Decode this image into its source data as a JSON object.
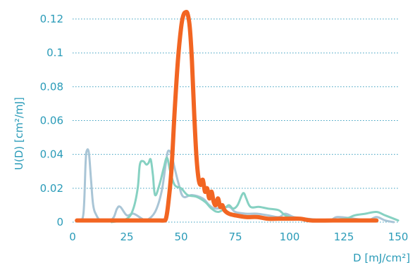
{
  "chart_data": {
    "type": "line",
    "title": "",
    "xlabel": "D [mJ/cm²]",
    "ylabel": "U(D) [cm²/mJ]",
    "xlim": [
      0,
      150
    ],
    "ylim": [
      0,
      0.125
    ],
    "x_ticks": [
      "0",
      "25",
      "50",
      "75",
      "100",
      "125",
      "150"
    ],
    "y_ticks": [
      "0",
      "0.02",
      "0.04",
      "0.06",
      "0.08",
      "0.1",
      "0.12"
    ],
    "grid": "horizontal dotted",
    "legend": "none",
    "colors": {
      "axis_text": "#2a9bb8",
      "grid": "#3a9fbf"
    },
    "series": [
      {
        "color": "#a9c5d6",
        "points": [
          [
            3,
            0.001
          ],
          [
            5,
            0.005
          ],
          [
            6,
            0.035
          ],
          [
            6.5,
            0.042
          ],
          [
            7.5,
            0.041
          ],
          [
            8.5,
            0.025
          ],
          [
            9.5,
            0.01
          ],
          [
            11,
            0.004
          ],
          [
            13,
            0.001
          ],
          [
            17,
            0.001
          ],
          [
            19,
            0.003
          ],
          [
            20.5,
            0.008
          ],
          [
            22,
            0.009
          ],
          [
            25,
            0.004
          ],
          [
            28,
            0.005
          ],
          [
            32,
            0.002
          ],
          [
            34,
            0.001
          ],
          [
            38,
            0.006
          ],
          [
            41,
            0.018
          ],
          [
            43,
            0.035
          ],
          [
            44,
            0.042
          ],
          [
            45.5,
            0.04
          ],
          [
            47,
            0.032
          ],
          [
            49,
            0.022
          ],
          [
            51,
            0.015
          ],
          [
            55,
            0.016
          ],
          [
            60,
            0.014
          ],
          [
            63,
            0.01
          ],
          [
            66,
            0.008
          ],
          [
            72,
            0.009
          ],
          [
            75,
            0.006
          ],
          [
            80,
            0.005
          ],
          [
            85,
            0.005
          ],
          [
            90,
            0.004
          ],
          [
            95,
            0.003
          ],
          [
            98,
            0.005
          ],
          [
            102,
            0.003
          ],
          [
            108,
            0.002
          ],
          [
            118,
            0.001
          ],
          [
            122,
            0.003
          ],
          [
            130,
            0.002
          ],
          [
            136,
            0.001
          ],
          [
            140,
            0.003
          ],
          [
            144,
            0.001
          ],
          [
            148,
            0.0
          ]
        ]
      },
      {
        "color": "#86d1c2",
        "points": [
          [
            18,
            0.0
          ],
          [
            25,
            0.002
          ],
          [
            28,
            0.008
          ],
          [
            30,
            0.02
          ],
          [
            31,
            0.034
          ],
          [
            32.5,
            0.036
          ],
          [
            34,
            0.034
          ],
          [
            35,
            0.035
          ],
          [
            36,
            0.037
          ],
          [
            37,
            0.028
          ],
          [
            38,
            0.016
          ],
          [
            40,
            0.022
          ],
          [
            42,
            0.032
          ],
          [
            43.5,
            0.038
          ],
          [
            45,
            0.03
          ],
          [
            47,
            0.022
          ],
          [
            50,
            0.02
          ],
          [
            53,
            0.016
          ],
          [
            57,
            0.015
          ],
          [
            61,
            0.012
          ],
          [
            64,
            0.008
          ],
          [
            67,
            0.006
          ],
          [
            70,
            0.008
          ],
          [
            72,
            0.01
          ],
          [
            74,
            0.008
          ],
          [
            76,
            0.01
          ],
          [
            78,
            0.016
          ],
          [
            79,
            0.017
          ],
          [
            80,
            0.014
          ],
          [
            82,
            0.009
          ],
          [
            86,
            0.009
          ],
          [
            90,
            0.008
          ],
          [
            95,
            0.007
          ],
          [
            98,
            0.004
          ],
          [
            103,
            0.002
          ],
          [
            112,
            0.001
          ],
          [
            125,
            0.002
          ],
          [
            130,
            0.004
          ],
          [
            135,
            0.005
          ],
          [
            140,
            0.006
          ],
          [
            144,
            0.004
          ],
          [
            148,
            0.002
          ],
          [
            150,
            0.001
          ]
        ]
      },
      {
        "color": "#f26522",
        "points": [
          [
            2,
            0.001
          ],
          [
            20,
            0.001
          ],
          [
            35,
            0.001
          ],
          [
            40,
            0.001
          ],
          [
            42,
            0.001
          ],
          [
            43,
            0.002
          ],
          [
            44,
            0.01
          ],
          [
            45.5,
            0.03
          ],
          [
            47,
            0.065
          ],
          [
            48.5,
            0.095
          ],
          [
            50,
            0.115
          ],
          [
            51,
            0.122
          ],
          [
            52,
            0.124
          ],
          [
            53,
            0.123
          ],
          [
            54,
            0.115
          ],
          [
            55,
            0.095
          ],
          [
            56,
            0.065
          ],
          [
            57,
            0.04
          ],
          [
            58,
            0.026
          ],
          [
            59,
            0.022
          ],
          [
            60,
            0.025
          ],
          [
            61,
            0.018
          ],
          [
            62,
            0.02
          ],
          [
            63,
            0.014
          ],
          [
            64,
            0.018
          ],
          [
            65,
            0.012
          ],
          [
            66,
            0.01
          ],
          [
            67,
            0.014
          ],
          [
            68,
            0.009
          ],
          [
            69,
            0.01
          ],
          [
            70,
            0.007
          ],
          [
            72,
            0.005
          ],
          [
            75,
            0.004
          ],
          [
            80,
            0.003
          ],
          [
            85,
            0.003
          ],
          [
            90,
            0.002
          ],
          [
            95,
            0.002
          ],
          [
            100,
            0.002
          ],
          [
            105,
            0.002
          ],
          [
            110,
            0.001
          ],
          [
            120,
            0.001
          ],
          [
            130,
            0.001
          ],
          [
            140,
            0.001
          ]
        ]
      }
    ]
  }
}
